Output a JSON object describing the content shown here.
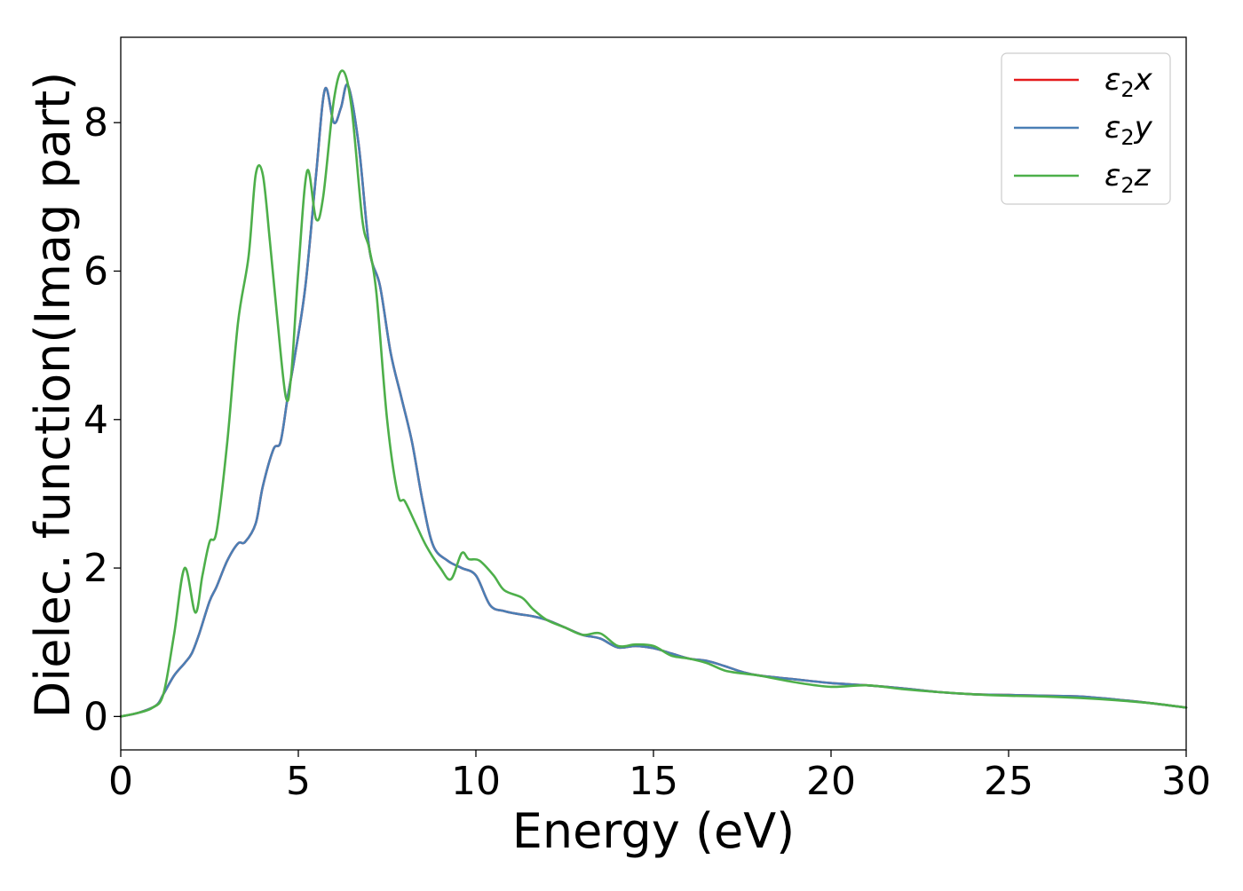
{
  "chart_data": {
    "type": "line",
    "xlabel": "Energy (eV)",
    "ylabel": "Dielec. function(Imag part)",
    "xlim": [
      0,
      30
    ],
    "ylim": [
      -0.45,
      9.15
    ],
    "x_ticks": [
      0,
      5,
      10,
      15,
      20,
      25,
      30
    ],
    "y_ticks": [
      0,
      2,
      4,
      6,
      8
    ],
    "grid": false,
    "legend_position": "top-right",
    "series": [
      {
        "name": "ε₂x",
        "legend": {
          "base": "ε",
          "sub": "2",
          "suffix": "x"
        },
        "color": "#e41a1c",
        "x": [
          0,
          0.5,
          1.0,
          1.2,
          1.5,
          1.8,
          2.0,
          2.2,
          2.5,
          2.7,
          3.0,
          3.3,
          3.5,
          3.8,
          4.0,
          4.3,
          4.5,
          4.7,
          4.9,
          5.2,
          5.5,
          5.75,
          6.0,
          6.2,
          6.4,
          6.7,
          7.0,
          7.3,
          7.6,
          7.9,
          8.2,
          8.5,
          8.8,
          9.2,
          9.6,
          10.0,
          10.4,
          10.8,
          11.2,
          11.6,
          12.0,
          12.5,
          13.0,
          13.5,
          14.0,
          14.5,
          15.0,
          15.5,
          16.0,
          16.5,
          17.0,
          17.5,
          18.0,
          19.0,
          20.0,
          21.0,
          22.0,
          23.0,
          24.0,
          25.0,
          26.0,
          27.0,
          28.0,
          29.0,
          30.0
        ],
        "y": [
          0,
          0.05,
          0.15,
          0.3,
          0.55,
          0.72,
          0.85,
          1.1,
          1.55,
          1.75,
          2.1,
          2.33,
          2.35,
          2.6,
          3.1,
          3.6,
          3.7,
          4.3,
          4.85,
          5.8,
          7.3,
          8.45,
          8.0,
          8.2,
          8.5,
          7.7,
          6.3,
          5.8,
          4.9,
          4.3,
          3.7,
          2.9,
          2.3,
          2.1,
          2.0,
          1.9,
          1.5,
          1.42,
          1.38,
          1.35,
          1.3,
          1.2,
          1.1,
          1.05,
          0.93,
          0.95,
          0.92,
          0.85,
          0.78,
          0.75,
          0.68,
          0.6,
          0.55,
          0.5,
          0.45,
          0.42,
          0.38,
          0.33,
          0.3,
          0.29,
          0.28,
          0.27,
          0.23,
          0.18,
          0.12
        ]
      },
      {
        "name": "ε₂y",
        "legend": {
          "base": "ε",
          "sub": "2",
          "suffix": "y"
        },
        "color": "#4a7fb5",
        "x": [
          0,
          0.5,
          1.0,
          1.2,
          1.5,
          1.8,
          2.0,
          2.2,
          2.5,
          2.7,
          3.0,
          3.3,
          3.5,
          3.8,
          4.0,
          4.3,
          4.5,
          4.7,
          4.9,
          5.2,
          5.5,
          5.75,
          6.0,
          6.2,
          6.4,
          6.7,
          7.0,
          7.3,
          7.6,
          7.9,
          8.2,
          8.5,
          8.8,
          9.2,
          9.6,
          10.0,
          10.4,
          10.8,
          11.2,
          11.6,
          12.0,
          12.5,
          13.0,
          13.5,
          14.0,
          14.5,
          15.0,
          15.5,
          16.0,
          16.5,
          17.0,
          17.5,
          18.0,
          19.0,
          20.0,
          21.0,
          22.0,
          23.0,
          24.0,
          25.0,
          26.0,
          27.0,
          28.0,
          29.0,
          30.0
        ],
        "y": [
          0,
          0.05,
          0.15,
          0.3,
          0.55,
          0.72,
          0.85,
          1.1,
          1.55,
          1.75,
          2.1,
          2.33,
          2.35,
          2.6,
          3.1,
          3.6,
          3.7,
          4.3,
          4.85,
          5.8,
          7.3,
          8.45,
          8.0,
          8.2,
          8.5,
          7.7,
          6.3,
          5.8,
          4.9,
          4.3,
          3.7,
          2.9,
          2.3,
          2.1,
          2.0,
          1.9,
          1.5,
          1.42,
          1.38,
          1.35,
          1.3,
          1.2,
          1.1,
          1.05,
          0.93,
          0.95,
          0.92,
          0.85,
          0.78,
          0.75,
          0.68,
          0.6,
          0.55,
          0.5,
          0.45,
          0.42,
          0.38,
          0.33,
          0.3,
          0.29,
          0.28,
          0.27,
          0.23,
          0.18,
          0.12
        ]
      },
      {
        "name": "ε₂z",
        "legend": {
          "base": "ε",
          "sub": "2",
          "suffix": "z"
        },
        "color": "#4daf4a",
        "x": [
          0,
          0.5,
          0.9,
          1.2,
          1.5,
          1.8,
          2.1,
          2.3,
          2.5,
          2.7,
          3.0,
          3.3,
          3.6,
          3.8,
          4.0,
          4.2,
          4.4,
          4.65,
          4.8,
          5.0,
          5.25,
          5.5,
          5.7,
          6.0,
          6.25,
          6.5,
          6.8,
          7.0,
          7.2,
          7.5,
          7.8,
          8.0,
          8.3,
          8.6,
          9.0,
          9.3,
          9.6,
          9.8,
          10.1,
          10.5,
          10.8,
          11.3,
          11.6,
          12.0,
          12.5,
          13.0,
          13.5,
          14.0,
          14.5,
          15.0,
          15.5,
          16.0,
          16.5,
          17.0,
          17.5,
          18.0,
          19.0,
          20.0,
          21.0,
          22.0,
          23.0,
          24.0,
          25.0,
          26.0,
          27.0,
          28.0,
          29.0,
          30.0
        ],
        "y": [
          0,
          0.05,
          0.12,
          0.3,
          1.1,
          2.0,
          1.4,
          1.9,
          2.35,
          2.5,
          3.7,
          5.3,
          6.2,
          7.3,
          7.3,
          6.4,
          5.4,
          4.3,
          4.6,
          6.0,
          7.35,
          6.7,
          7.0,
          8.3,
          8.7,
          8.2,
          6.7,
          6.3,
          5.7,
          4.0,
          3.0,
          2.9,
          2.6,
          2.3,
          2.0,
          1.85,
          2.2,
          2.12,
          2.1,
          1.9,
          1.7,
          1.6,
          1.45,
          1.3,
          1.2,
          1.1,
          1.12,
          0.95,
          0.97,
          0.95,
          0.82,
          0.78,
          0.72,
          0.62,
          0.58,
          0.55,
          0.46,
          0.4,
          0.42,
          0.37,
          0.33,
          0.3,
          0.28,
          0.27,
          0.25,
          0.22,
          0.18,
          0.12
        ]
      }
    ]
  }
}
